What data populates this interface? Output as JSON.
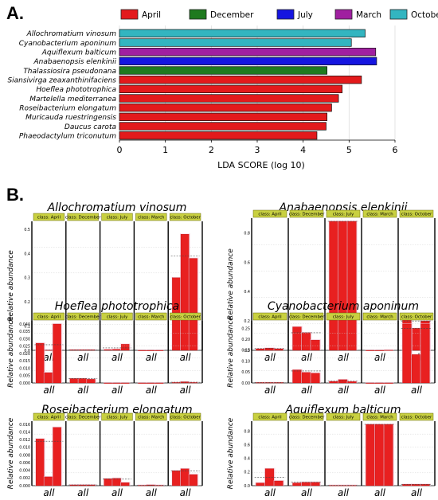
{
  "panel_a": {
    "label": "A.",
    "chart_data": {
      "type": "bar",
      "orientation": "horizontal",
      "xlabel": "LDA SCORE (log 10)",
      "xlim": [
        0,
        6
      ],
      "xticks": [
        "0",
        "1",
        "2",
        "3",
        "4",
        "5",
        "6"
      ],
      "grid": true,
      "legend_placement": "top",
      "legend": [
        {
          "name": "April",
          "color": "#e31a1c"
        },
        {
          "name": "December",
          "color": "#1f7a1f"
        },
        {
          "name": "July",
          "color": "#1515e0"
        },
        {
          "name": "March",
          "color": "#a020a0"
        },
        {
          "name": "October",
          "color": "#33b5c0"
        }
      ],
      "categories": [
        "Allochromatium vinosum",
        "Cyanobacterium aponinum",
        "Aquiflexum balticum",
        "Anabaenopsis elenkinii",
        "Thalassiosira pseudonana",
        "Siansivirga zeaxanthinifaciens",
        "Hoeflea phototrophica",
        "Martelella mediterranea",
        "Roseibacterium elongatum",
        "Muricauda ruestringensis",
        "Daucus carota",
        "Phaeodactylum triconutum"
      ],
      "values": [
        5.35,
        5.05,
        5.58,
        5.6,
        4.52,
        5.27,
        4.85,
        4.77,
        4.62,
        4.52,
        4.5,
        4.3
      ],
      "groups": [
        "October",
        "October",
        "March",
        "July",
        "December",
        "April",
        "April",
        "April",
        "April",
        "April",
        "April",
        "April"
      ]
    }
  },
  "panel_b": {
    "label": "B.",
    "ylabel": "Relative abundance",
    "xtick": "all",
    "classes": [
      "class: April",
      "class: December",
      "class: July",
      "class: March",
      "class: October"
    ],
    "chart_data": [
      {
        "type": "bar",
        "title": "Allochromatium vinosum",
        "yticks": [
          "0.0",
          "0.1",
          "0.2",
          "0.3",
          "0.4",
          "0.5"
        ],
        "ymax": 0.52,
        "groups": [
          [
            0.001,
            0.001,
            0.001
          ],
          [
            0.002,
            0.002,
            0.002
          ],
          [
            0.003,
            0.004,
            0.025
          ],
          [
            0,
            0,
            0
          ],
          [
            0.3,
            0.48,
            0.38
          ]
        ],
        "means": [
          0.001,
          0.002,
          0.01,
          0,
          0.39
        ]
      },
      {
        "type": "bar",
        "title": "Anabaenopsis elenkinii",
        "yticks": [
          "0.0",
          "0.2",
          "0.4",
          "0.6",
          "0.8"
        ],
        "ymax": 0.88,
        "groups": [
          [
            0.01,
            0.015,
            0.01
          ],
          [
            0.16,
            0.12,
            0.07
          ],
          [
            0.88,
            0.88,
            0.88
          ],
          [
            0,
            0,
            0.001
          ],
          [
            0.25,
            0.15,
            0.2
          ]
        ],
        "means": [
          0.012,
          0.12,
          0.88,
          0.0,
          0.2
        ]
      },
      {
        "type": "bar",
        "title": "Hoeflea phototrophica",
        "yticks": [
          "0.000",
          "0.005",
          "0.010",
          "0.015",
          "0.020",
          "0.025",
          "0.030",
          "0.035",
          "0.040"
        ],
        "ymax": 0.04,
        "groups": [
          [
            0.027,
            0.007,
            0.04
          ],
          [
            0.003,
            0.003,
            0.0025
          ],
          [
            0,
            0,
            0
          ],
          [
            0,
            0,
            0
          ],
          [
            0.0003,
            0.0008,
            0.0003
          ]
        ],
        "means": [
          0.026,
          0.003,
          0,
          0,
          0.0005
        ]
      },
      {
        "type": "bar",
        "title": "Cyanobacterium aponinum",
        "yticks": [
          "0.00",
          "0.05",
          "0.10",
          "0.15",
          "0.20",
          "0.25"
        ],
        "ymax": 0.27,
        "groups": [
          [
            0.002,
            0.002,
            0.002
          ],
          [
            0.06,
            0.048,
            0.045
          ],
          [
            0.007,
            0.015,
            0.006
          ],
          [
            0,
            0,
            0
          ],
          [
            0.27,
            0.13,
            0.27
          ]
        ],
        "means": [
          0.002,
          0.055,
          0.01,
          0,
          0.25
        ]
      },
      {
        "type": "bar",
        "title": "Roseibacterium elongatum",
        "yticks": [
          "0.000",
          "0.002",
          "0.004",
          "0.006",
          "0.008",
          "0.010",
          "0.012",
          "0.014",
          "0.016"
        ],
        "ymax": 0.016,
        "groups": [
          [
            0.0122,
            0.0023,
            0.0152
          ],
          [
            0.0002,
            0.0002,
            0.0002
          ],
          [
            0.0018,
            0.0019,
            0.0008
          ],
          [
            0.0001,
            0.0002,
            0.0001
          ],
          [
            0.0039,
            0.0044,
            0.0029
          ]
        ],
        "means": [
          0.0116,
          0.0002,
          0.0017,
          0.0001,
          0.0038
        ]
      },
      {
        "type": "bar",
        "title": "Aquiflexum balticum",
        "yticks": [
          "0.0",
          "0.2",
          "0.4",
          "0.6",
          "0.8"
        ],
        "ymax": 0.9,
        "groups": [
          [
            0.04,
            0.25,
            0.07
          ],
          [
            0.04,
            0.05,
            0.05
          ],
          [
            0.005,
            0.005,
            0.005
          ],
          [
            0.9,
            0.9,
            0.9
          ],
          [
            0.02,
            0.02,
            0.02
          ]
        ],
        "means": [
          0.12,
          0.05,
          0.005,
          0.9,
          0.02
        ]
      }
    ]
  }
}
